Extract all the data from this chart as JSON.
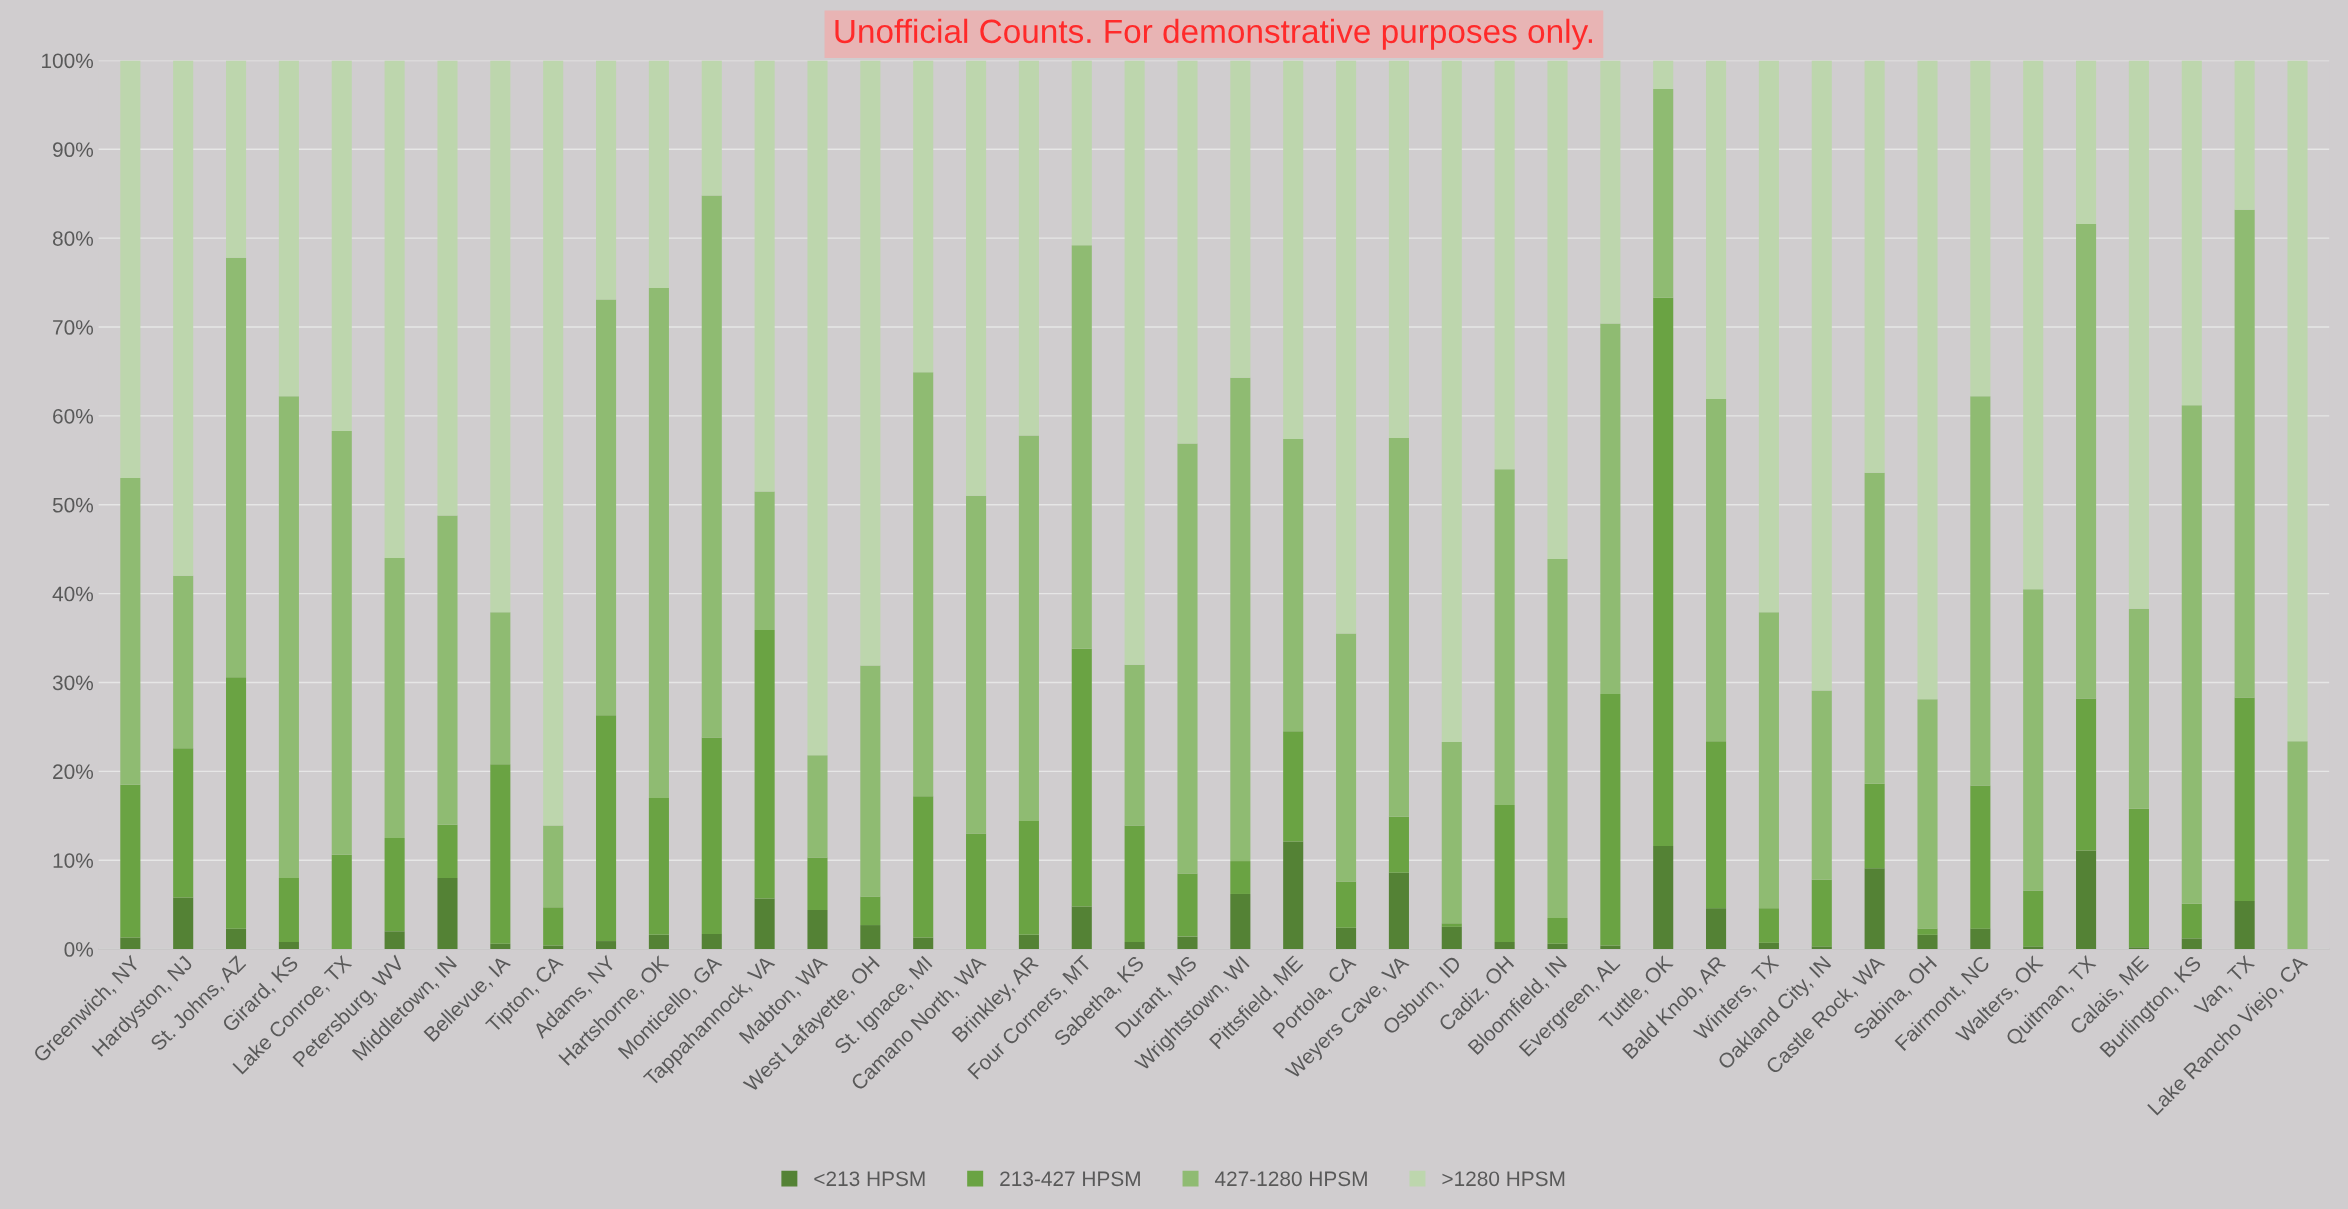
{
  "chart_data": {
    "type": "bar",
    "stacked": true,
    "categories": [
      "Greenwich, NY",
      "Hardyston, NJ",
      "St. Johns, AZ",
      "Girard, KS",
      "Lake Conroe, TX",
      "Petersburg, WV",
      "Middletown, IN",
      "Bellevue, IA",
      "Tipton, CA",
      "Adams, NY",
      "Hartshorne, OK",
      "Monticello, GA",
      "Tappahannock, VA",
      "Mabton, WA",
      "West Lafayette, OH",
      "St. Ignace, MI",
      "Camano North, WA",
      "Brinkley, AR",
      "Four Corners, MT",
      "Sabetha, KS",
      "Durant, MS",
      "Wrightstown, WI",
      "Pittsfield, ME",
      "Portola, CA",
      "Weyers Cave, VA",
      "Osburn, ID",
      "Cadiz, OH",
      "Bloomfield, IN",
      "Evergreen, AL",
      "Tuttle, OK",
      "Bald Knob, AR",
      "Winters, TX",
      "Oakland City, IN",
      "Castle Rock, WA",
      "Sabina, OH",
      "Fairmont, NC",
      "Walters, OK",
      "Quitman, TX",
      "Calais, ME",
      "Burlington, KS",
      "Van, TX",
      "Lake Rancho Viejo, CA"
    ],
    "series": [
      {
        "name": "<213 HPSM",
        "color": "#548235",
        "values": [
          1.3,
          5.8,
          2.3,
          0.8,
          0,
          2,
          8,
          0.6,
          0.4,
          0.9,
          1.6,
          1.7,
          5.7,
          4.4,
          2.7,
          1.3,
          0,
          1.6,
          4.8,
          0.8,
          1.4,
          6.2,
          12.1,
          2.4,
          8.6,
          2.5,
          0.8,
          0.6,
          0.4,
          11.6,
          4.6,
          0.7,
          0.3,
          9.1,
          1.6,
          2.3,
          0.3,
          11.1,
          0.2,
          1.2,
          5.4,
          0
        ]
      },
      {
        "name": "213-427 HPSM",
        "color": "#6aa343",
        "values": [
          17.2,
          16.8,
          28.3,
          7.2,
          10.6,
          10.5,
          6,
          20.2,
          4.3,
          25.4,
          15.4,
          22.1,
          30.2,
          5.9,
          3.2,
          15.9,
          13,
          12.8,
          29,
          13.1,
          7.1,
          3.7,
          12.4,
          5.2,
          6.3,
          0.4,
          15.4,
          2.9,
          28.3,
          61.7,
          18.8,
          3.9,
          7.5,
          9.5,
          0.7,
          16.1,
          6.3,
          17.1,
          15.6,
          3.9,
          22.9,
          0
        ]
      },
      {
        "name": "427-1280 HPSM",
        "color": "#8fbb72",
        "values": [
          34.5,
          19.4,
          47.2,
          54.2,
          47.7,
          31.5,
          34.8,
          17.1,
          9.2,
          46.8,
          57.4,
          61,
          15.6,
          11.5,
          26,
          47.7,
          38,
          43.4,
          45.4,
          18.1,
          48.4,
          54.4,
          32.9,
          27.9,
          42.6,
          20.4,
          37.8,
          40.4,
          41.7,
          23.5,
          38.5,
          33.3,
          21.3,
          35,
          25.8,
          43.8,
          33.9,
          53.4,
          22.5,
          56.1,
          54.9,
          23.4
        ]
      },
      {
        "name": ">1280 HPSM",
        "color": "#bdd6ad",
        "values": [
          47,
          58,
          22.2,
          37.8,
          41.7,
          56,
          51.2,
          62.1,
          86.1,
          26.9,
          25.6,
          15.2,
          48.5,
          78.2,
          68.1,
          35.1,
          49,
          42.2,
          20.8,
          68,
          43.1,
          35.7,
          42.6,
          64.5,
          42.5,
          76.7,
          46,
          56.1,
          29.6,
          3.2,
          38.1,
          62.1,
          70.9,
          46.4,
          71.9,
          37.8,
          59.5,
          18.4,
          61.7,
          38.8,
          16.8,
          76.6
        ]
      }
    ],
    "ylim": [
      0,
      100
    ],
    "yticks": [
      {
        "value": 0,
        "label": "0%"
      },
      {
        "value": 10,
        "label": "10%"
      },
      {
        "value": 20,
        "label": "20%"
      },
      {
        "value": 30,
        "label": "30%"
      },
      {
        "value": 40,
        "label": "40%"
      },
      {
        "value": 50,
        "label": "50%"
      },
      {
        "value": 60,
        "label": "60%"
      },
      {
        "value": 70,
        "label": "70%"
      },
      {
        "value": 80,
        "label": "80%"
      },
      {
        "value": 90,
        "label": "90%"
      },
      {
        "value": 100,
        "label": "100%"
      }
    ],
    "grid": "y",
    "legend": "bottom",
    "annotations": [
      "Unofficial Counts. For demonstrative purposes only."
    ]
  }
}
